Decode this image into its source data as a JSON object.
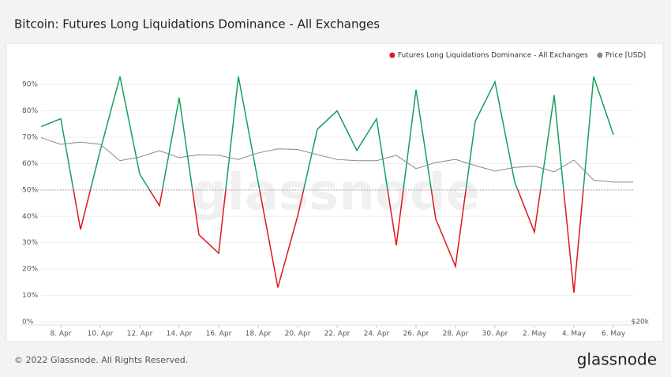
{
  "chart_data": {
    "type": "line",
    "title": "Bitcoin: Futures Long Liquidations Dominance - All Exchanges",
    "footer": "© 2022 Glassnode. All Rights Reserved.",
    "brand": "glassnode",
    "x": [
      "2022-04-07",
      "2022-04-08",
      "2022-04-09",
      "2022-04-10",
      "2022-04-11",
      "2022-04-12",
      "2022-04-13",
      "2022-04-14",
      "2022-04-15",
      "2022-04-16",
      "2022-04-17",
      "2022-04-18",
      "2022-04-19",
      "2022-04-20",
      "2022-04-21",
      "2022-04-22",
      "2022-04-23",
      "2022-04-24",
      "2022-04-25",
      "2022-04-26",
      "2022-04-27",
      "2022-04-28",
      "2022-04-29",
      "2022-04-30",
      "2022-05-01",
      "2022-05-02",
      "2022-05-03",
      "2022-05-04",
      "2022-05-05",
      "2022-05-06",
      "2022-05-07"
    ],
    "xlim": [
      "2022-04-06",
      "2022-05-07"
    ],
    "xticks": [
      {
        "value": "2022-04-08",
        "label": "8. Apr"
      },
      {
        "value": "2022-04-10",
        "label": "10. Apr"
      },
      {
        "value": "2022-04-12",
        "label": "12. Apr"
      },
      {
        "value": "2022-04-14",
        "label": "14. Apr"
      },
      {
        "value": "2022-04-16",
        "label": "16. Apr"
      },
      {
        "value": "2022-04-18",
        "label": "18. Apr"
      },
      {
        "value": "2022-04-20",
        "label": "20. Apr"
      },
      {
        "value": "2022-04-22",
        "label": "22. Apr"
      },
      {
        "value": "2022-04-24",
        "label": "24. Apr"
      },
      {
        "value": "2022-04-26",
        "label": "26. Apr"
      },
      {
        "value": "2022-04-28",
        "label": "28. Apr"
      },
      {
        "value": "2022-04-30",
        "label": "30. Apr"
      },
      {
        "value": "2022-05-02",
        "label": "2. May"
      },
      {
        "value": "2022-05-04",
        "label": "4. May"
      },
      {
        "value": "2022-05-06",
        "label": "6. May"
      }
    ],
    "ylim": [
      0,
      99
    ],
    "yticks": [
      {
        "value": 0,
        "label": "0%"
      },
      {
        "value": 10,
        "label": "10%"
      },
      {
        "value": 20,
        "label": "20%"
      },
      {
        "value": 30,
        "label": "30%"
      },
      {
        "value": 40,
        "label": "40%"
      },
      {
        "value": 50,
        "label": "50%"
      },
      {
        "value": 60,
        "label": "60%"
      },
      {
        "value": 70,
        "label": "70%"
      },
      {
        "value": 80,
        "label": "80%"
      },
      {
        "value": 90,
        "label": "90%"
      }
    ],
    "y2lim": [
      20000,
      60000
    ],
    "y2log": true,
    "y2ticks": [
      {
        "value": 20000,
        "label": "$20k"
      }
    ],
    "grid": true,
    "threshold": 50,
    "legend": "top-right",
    "series": [
      {
        "name": "Futures Long Liquidations Dominance - All Exchanges",
        "color": "#e0161c",
        "color_above": "#13a05b",
        "values": [
          74,
          77,
          35,
          65,
          93,
          56,
          44,
          85,
          33,
          26,
          93,
          53,
          13,
          40,
          73,
          80,
          65,
          77,
          29,
          88,
          39,
          21,
          76,
          91,
          53,
          34,
          86,
          11,
          93,
          71,
          null
        ]
      },
      {
        "name": "Price [USD]",
        "color": "#888888",
        "axis": "y2",
        "values": [
          43400,
          42200,
          42600,
          42200,
          39400,
          40000,
          41100,
          39900,
          40400,
          40300,
          39600,
          40700,
          41400,
          41300,
          40400,
          39600,
          39400,
          39400,
          40300,
          38100,
          39100,
          39600,
          38600,
          37700,
          38300,
          38500,
          37600,
          39500,
          36300,
          36000,
          36000
        ]
      }
    ]
  }
}
